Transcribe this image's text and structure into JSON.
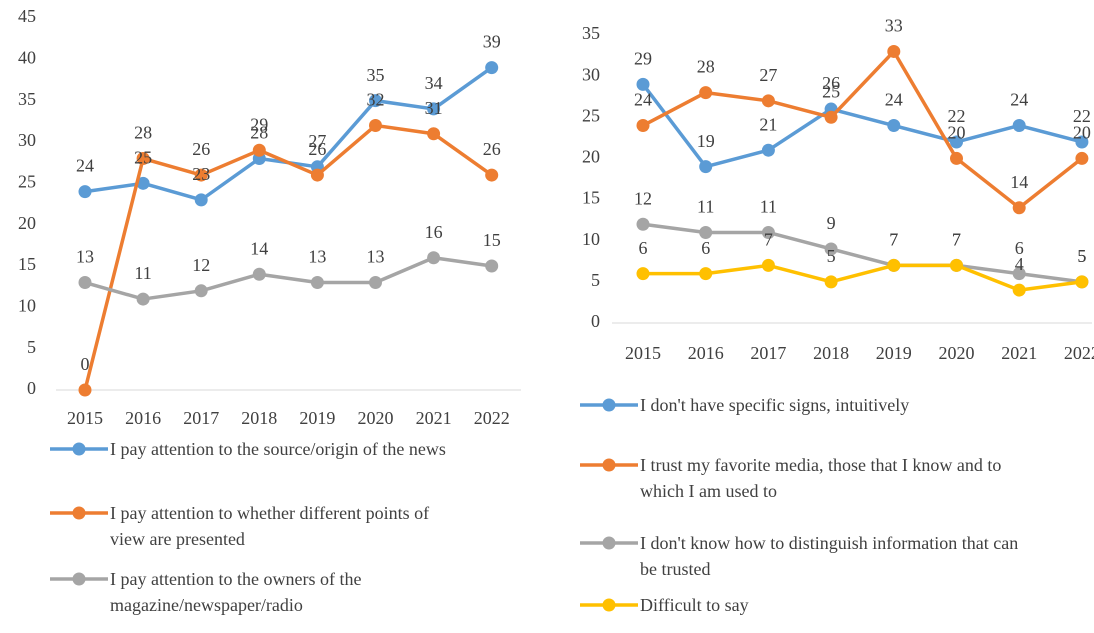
{
  "chart_data": [
    {
      "type": "line",
      "categories": [
        "2015",
        "2016",
        "2017",
        "2018",
        "2019",
        "2020",
        "2021",
        "2022"
      ],
      "ylim": [
        0,
        45
      ],
      "yticks": [
        0,
        5,
        10,
        15,
        20,
        25,
        30,
        35,
        40,
        45
      ],
      "grid": false,
      "legend": "bottom",
      "series": [
        {
          "name": "I pay attention to the source/origin of the news",
          "color": "#5b9bd5",
          "values": [
            24,
            25,
            23,
            28,
            27,
            35,
            34,
            39
          ]
        },
        {
          "name": "I pay attention to whether different points of view are presented",
          "color": "#ed7d31",
          "values": [
            0,
            28,
            26,
            29,
            26,
            32,
            31,
            26
          ]
        },
        {
          "name": "I pay attention to the owners of the magazine/newspaper/radio",
          "color": "#a5a5a5",
          "values": [
            13,
            11,
            12,
            14,
            13,
            13,
            16,
            15
          ]
        }
      ]
    },
    {
      "type": "line",
      "categories": [
        "2015",
        "2016",
        "2017",
        "2018",
        "2019",
        "2020",
        "2021",
        "2022"
      ],
      "ylim": [
        0,
        35
      ],
      "yticks": [
        0,
        5,
        10,
        15,
        20,
        25,
        30,
        35
      ],
      "grid": false,
      "legend": "bottom",
      "series": [
        {
          "name": "I don't have specific signs, intuitively",
          "color": "#5b9bd5",
          "values": [
            29,
            19,
            21,
            26,
            24,
            22,
            24,
            22
          ]
        },
        {
          "name": "I trust my favorite media, those that I know and to which I am used to",
          "color": "#ed7d31",
          "values": [
            24,
            28,
            27,
            25,
            33,
            20,
            14,
            20
          ]
        },
        {
          "name": "I don't know how to distinguish information that can be trusted",
          "color": "#a5a5a5",
          "values": [
            12,
            11,
            11,
            9,
            7,
            7,
            6,
            5
          ]
        },
        {
          "name": "Difficult to say",
          "color": "#ffc000",
          "values": [
            6,
            6,
            7,
            5,
            7,
            7,
            4,
            5
          ]
        }
      ]
    }
  ]
}
